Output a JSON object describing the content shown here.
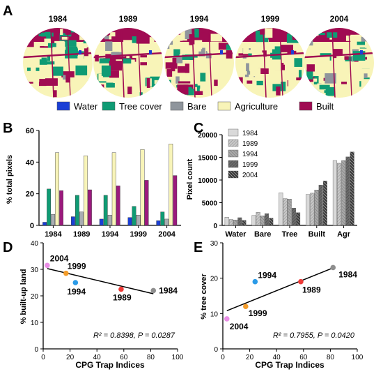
{
  "panel_labels": {
    "A": "A",
    "B": "B",
    "C": "C",
    "D": "D",
    "E": "E"
  },
  "panel_a": {
    "years": [
      "1984",
      "1989",
      "1994",
      "1999",
      "2004"
    ],
    "legend": [
      {
        "label": "Water",
        "color": "#1a3fd6"
      },
      {
        "label": "Tree cover",
        "color": "#0f9b74"
      },
      {
        "label": "Bare",
        "color": "#8f959c"
      },
      {
        "label": "Agriculture",
        "color": "#f8f4b8"
      },
      {
        "label": "Built",
        "color": "#a00b52"
      }
    ]
  },
  "chart_data": [
    {
      "panel": "B",
      "type": "bar",
      "ylabel": "% total pixels",
      "categories": [
        "1984",
        "1989",
        "1994",
        "1999",
        "2004"
      ],
      "yticks": [
        "0",
        "20",
        "40",
        "60"
      ],
      "ylim": [
        0,
        60
      ],
      "series": [
        {
          "class": "Water",
          "color": "#1a3fd6",
          "values": [
            2,
            5.5,
            4,
            5,
            3
          ]
        },
        {
          "class": "Tree cover",
          "color": "#0f9b74",
          "values": [
            23,
            19,
            19,
            12,
            8.5
          ]
        },
        {
          "class": "Bare",
          "color": "#a9adb2",
          "values": [
            7,
            8.5,
            6.5,
            6.5,
            4
          ]
        },
        {
          "class": "Agriculture",
          "color": "#f8f4b8",
          "values": [
            46,
            44,
            46,
            48,
            51.5
          ]
        },
        {
          "class": "Built",
          "color": "#9b1a7d",
          "values": [
            22,
            22.5,
            25,
            28.5,
            31.5
          ]
        }
      ]
    },
    {
      "panel": "C",
      "type": "bar",
      "ylabel": "Pixel count",
      "categories": [
        "Water",
        "Bare",
        "Tree",
        "Built",
        "Agr"
      ],
      "yticks": [
        "0",
        "5000",
        "10000",
        "15000",
        "20000"
      ],
      "ylim": [
        0,
        20000
      ],
      "legend_position": "top-left",
      "series": [
        {
          "name": "1984",
          "values": [
            1800,
            2200,
            7200,
            6800,
            14300
          ]
        },
        {
          "name": "1989",
          "values": [
            1300,
            2900,
            5900,
            7100,
            13700
          ]
        },
        {
          "name": "1994",
          "values": [
            1200,
            2100,
            5800,
            7800,
            14300
          ]
        },
        {
          "name": "1999",
          "values": [
            1700,
            2600,
            3800,
            8900,
            15100
          ]
        },
        {
          "name": "2004",
          "values": [
            1100,
            1600,
            2800,
            9800,
            16200
          ]
        }
      ]
    },
    {
      "panel": "D",
      "type": "scatter",
      "xlabel": "CPG Trap Indices",
      "ylabel": "% built-up land",
      "xticks": [
        "0",
        "20",
        "40",
        "60",
        "80",
        "100"
      ],
      "yticks": [
        "0",
        "10",
        "20",
        "30",
        "40"
      ],
      "xlim": [
        0,
        100
      ],
      "ylim": [
        0,
        40
      ],
      "points": [
        {
          "label": "1984",
          "x": 82,
          "y": 22,
          "color": "#8e8e8e"
        },
        {
          "label": "1989",
          "x": 58,
          "y": 22.5,
          "color": "#ee3a37"
        },
        {
          "label": "1994",
          "x": 24,
          "y": 25,
          "color": "#2b9be8"
        },
        {
          "label": "1999",
          "x": 17,
          "y": 28.5,
          "color": "#f39c2a"
        },
        {
          "label": "2004",
          "x": 3,
          "y": 31.5,
          "color": "#ea8ee6"
        }
      ],
      "trendline": {
        "x": [
          3,
          82
        ],
        "y": [
          30.3,
          20.8
        ]
      },
      "stat_r2": "R² = 0.8398, ",
      "stat_p": "P = 0.0287"
    },
    {
      "panel": "E",
      "type": "scatter",
      "xlabel": "CPG Trap Indices",
      "ylabel": "% tree cover",
      "xticks": [
        "0",
        "20",
        "40",
        "60",
        "80",
        "100"
      ],
      "yticks": [
        "0",
        "10",
        "20",
        "30"
      ],
      "xlim": [
        0,
        100
      ],
      "ylim": [
        0,
        30
      ],
      "points": [
        {
          "label": "1984",
          "x": 82,
          "y": 23,
          "color": "#8e8e8e"
        },
        {
          "label": "1989",
          "x": 58,
          "y": 19,
          "color": "#ee3a37"
        },
        {
          "label": "1994",
          "x": 24,
          "y": 19,
          "color": "#2b9be8"
        },
        {
          "label": "1999",
          "x": 17,
          "y": 12,
          "color": "#f39c2a"
        },
        {
          "label": "2004",
          "x": 3,
          "y": 8.5,
          "color": "#ea8ee6"
        }
      ],
      "trendline": {
        "x": [
          3,
          82
        ],
        "y": [
          10.8,
          22.9
        ]
      },
      "stat_r2": "R² = 0.7955, ",
      "stat_p": "P = 0.0420"
    }
  ]
}
